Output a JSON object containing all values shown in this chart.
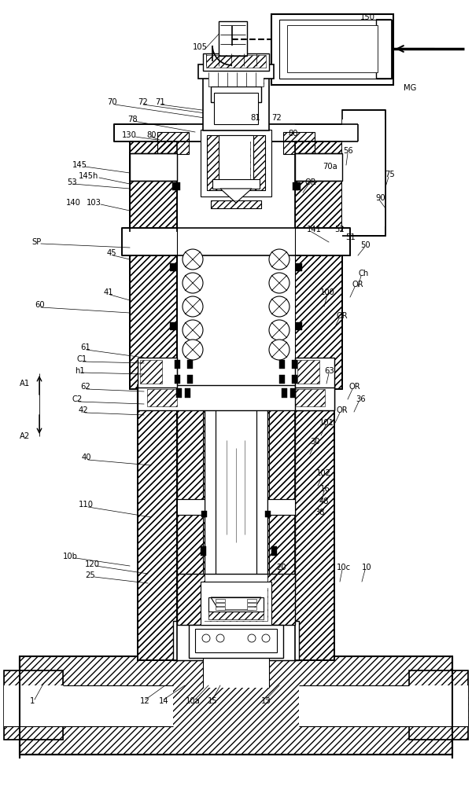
{
  "bg": "#ffffff",
  "lc": "#000000",
  "fig_w": 6.0,
  "fig_h": 10.0,
  "dpi": 100,
  "labels": [
    [
      "150",
      455,
      22
    ],
    [
      "105",
      248,
      62
    ],
    [
      "MG",
      512,
      112
    ],
    [
      "70",
      138,
      130
    ],
    [
      "72",
      178,
      130
    ],
    [
      "71",
      200,
      130
    ],
    [
      "78",
      165,
      152
    ],
    [
      "130",
      158,
      172
    ],
    [
      "80",
      185,
      172
    ],
    [
      "81",
      320,
      150
    ],
    [
      "72",
      348,
      150
    ],
    [
      "80",
      368,
      170
    ],
    [
      "56",
      438,
      192
    ],
    [
      "145",
      95,
      210
    ],
    [
      "70a",
      412,
      212
    ],
    [
      "145h",
      104,
      224
    ],
    [
      "75",
      490,
      222
    ],
    [
      "OR",
      392,
      232
    ],
    [
      "53",
      88,
      232
    ],
    [
      "90",
      480,
      252
    ],
    [
      "140",
      88,
      258
    ],
    [
      "103",
      114,
      258
    ],
    [
      "141",
      393,
      292
    ],
    [
      "52",
      428,
      292
    ],
    [
      "51",
      442,
      302
    ],
    [
      "SP",
      44,
      308
    ],
    [
      "50",
      460,
      312
    ],
    [
      "45",
      140,
      322
    ],
    [
      "Ch",
      458,
      348
    ],
    [
      "OR",
      450,
      362
    ],
    [
      "41",
      136,
      372
    ],
    [
      "100",
      410,
      372
    ],
    [
      "60",
      48,
      388
    ],
    [
      "OR",
      430,
      402
    ],
    [
      "61",
      106,
      442
    ],
    [
      "C1",
      100,
      457
    ],
    [
      "h1",
      98,
      472
    ],
    [
      "63",
      415,
      472
    ],
    [
      "A1",
      28,
      488
    ],
    [
      "62",
      106,
      492
    ],
    [
      "OR",
      448,
      492
    ],
    [
      "C2",
      96,
      508
    ],
    [
      "36",
      456,
      508
    ],
    [
      "OR",
      432,
      522
    ],
    [
      "42",
      105,
      522
    ],
    [
      "101",
      410,
      538
    ],
    [
      "A2",
      28,
      555
    ],
    [
      "30",
      398,
      562
    ],
    [
      "40",
      108,
      582
    ],
    [
      "102",
      406,
      602
    ],
    [
      "16",
      410,
      622
    ],
    [
      "110",
      104,
      642
    ],
    [
      "48",
      410,
      638
    ],
    [
      "38",
      404,
      652
    ],
    [
      "10b",
      84,
      708
    ],
    [
      "120",
      112,
      718
    ],
    [
      "25",
      112,
      732
    ],
    [
      "20",
      355,
      722
    ],
    [
      "10c",
      432,
      722
    ],
    [
      "10",
      464,
      722
    ],
    [
      "1",
      42,
      892
    ],
    [
      "12",
      182,
      892
    ],
    [
      "14",
      206,
      892
    ],
    [
      "10a",
      240,
      892
    ],
    [
      "15",
      268,
      892
    ],
    [
      "13",
      336,
      892
    ]
  ]
}
